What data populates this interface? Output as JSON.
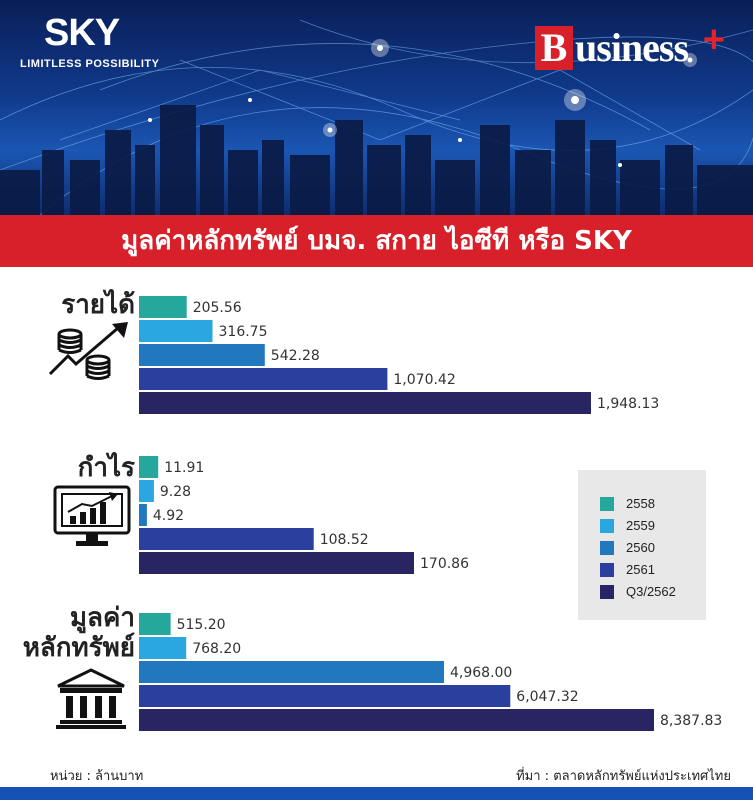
{
  "header": {
    "logo_text": "SKY",
    "logo_tagline": "LIMITLESS POSSIBILITY",
    "brand": "Business+"
  },
  "title": "มูลค่าหลักทรัพย์ บมจ. สกาย ไอซีที หรือ SKY",
  "colors": {
    "2558": "#25a89b",
    "2559": "#2aa6e0",
    "2560": "#2278bd",
    "2561": "#2a3f9e",
    "Q3/2562": "#292462",
    "accent_red": "#d8202a"
  },
  "legend": [
    "2558",
    "2559",
    "2560",
    "2561",
    "Q3/2562"
  ],
  "chart_data": [
    {
      "type": "bar",
      "title": "รายได้",
      "icon": "coins-growth-icon",
      "categories": [
        "2558",
        "2559",
        "2560",
        "2561",
        "Q3/2562"
      ],
      "values": [
        205.56,
        316.75,
        542.28,
        1070.42,
        1948.13
      ],
      "value_labels": [
        "205.56",
        "316.75",
        "542.28",
        "1,070.42",
        "1,948.13"
      ]
    },
    {
      "type": "bar",
      "title": "กำไร",
      "icon": "monitor-chart-icon",
      "categories": [
        "2558",
        "2559",
        "2560",
        "2561",
        "Q3/2562"
      ],
      "values": [
        11.91,
        9.28,
        4.92,
        108.52,
        170.86
      ],
      "value_labels": [
        "11.91",
        "9.28",
        "4.92",
        "108.52",
        "170.86"
      ]
    },
    {
      "type": "bar",
      "title": "มูลค่า หลักทรัพย์",
      "icon": "bank-building-icon",
      "categories": [
        "2558",
        "2559",
        "2560",
        "2561",
        "Q3/2562"
      ],
      "values": [
        515.2,
        768.2,
        4968.0,
        6047.32,
        8387.83
      ],
      "value_labels": [
        "515.20",
        "768.20",
        "4,968.00",
        "6,047.32",
        "8,387.83"
      ]
    }
  ],
  "labels": {
    "revenue": "รายได้",
    "profit": "กำไร",
    "market_value_1": "มูลค่า",
    "market_value_2": "หลักทรัพย์"
  },
  "footer": {
    "unit": "หน่วย : ล้านบาท",
    "source": "ที่มา : ตลาดหลักทรัพย์แห่งประเทศไทย"
  }
}
